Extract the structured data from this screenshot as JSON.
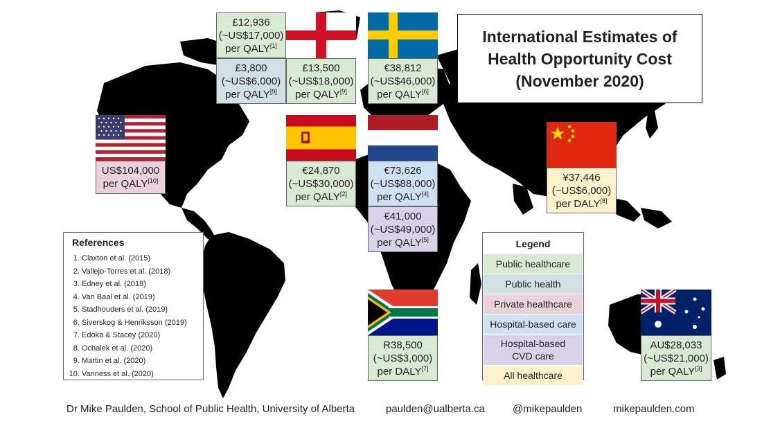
{
  "title": {
    "line1": "International Estimates of",
    "line2": "Health Opportunity Cost",
    "line3": "(November 2020)"
  },
  "countries": {
    "england": {
      "flag_icon": "england-flag-icon",
      "public_healthcare": {
        "l1": "£12,936",
        "l2": "(~US$17,000)",
        "l3": "per QALY",
        "ref": "[1]"
      },
      "public_health": {
        "l1": "£3,800",
        "l2": "(~US$6,000)",
        "l3": "per QALY",
        "ref": "[9]"
      },
      "public_healthcare_2": {
        "l1": "£13,500",
        "l2": "(~US$18,000)",
        "l3": "per QALY",
        "ref": "[9]"
      }
    },
    "sweden": {
      "flag_icon": "sweden-flag-icon",
      "l1": "€38,812",
      "l2": "(~US$46,000)",
      "l3": "per QALY",
      "ref": "[6]"
    },
    "usa": {
      "flag_icon": "usa-flag-icon",
      "l1": "US$104,000",
      "l2": "per QALY",
      "ref": "[10]"
    },
    "spain": {
      "flag_icon": "spain-flag-icon",
      "l1": "€24,870",
      "l2": "(~US$30,000)",
      "l3": "per QALY",
      "ref": "[2]"
    },
    "netherlands": {
      "flag_icon": "netherlands-flag-icon",
      "hospital": {
        "l1": "€73,626",
        "l2": "(~US$88,000)",
        "l3": "per QALY",
        "ref": "[4]"
      },
      "cvd": {
        "l1": "€41,000",
        "l2": "(~US$49,000)",
        "l3": "per QALY",
        "ref": "[5]"
      }
    },
    "china": {
      "flag_icon": "china-flag-icon",
      "l1": "¥37,446",
      "l2": "(~US$6,000)",
      "l3": "per DALY",
      "ref": "[8]"
    },
    "south_africa": {
      "flag_icon": "south-africa-flag-icon",
      "l1": "R38,500",
      "l2": "(~US$3,000)",
      "l3": "per DALY",
      "ref": "[7]"
    },
    "australia": {
      "flag_icon": "australia-flag-icon",
      "l1": "AU$28,033",
      "l2": "(~US$21,000)",
      "l3": "per QALY",
      "ref": "[3]"
    }
  },
  "references": {
    "heading": "References",
    "items": [
      "Claxton et al. (2015)",
      "Vallejo-Torres et al. (2018)",
      "Edney et al. (2018)",
      "Van Baal et al. (2019)",
      "Stadhouders et al. (2019)",
      "Siverskog & Henriksson (2019)",
      "Edoka & Stacey (2020)",
      "Ochalek et al. (2020)",
      "Martin et al. (2020)",
      "Vanness et al. (2020)"
    ]
  },
  "legend": {
    "heading": "Legend",
    "items": [
      {
        "label": "Public healthcare",
        "color": "#d9ead3"
      },
      {
        "label": "Public health",
        "color": "#d0e0e3"
      },
      {
        "label": "Private healthcare",
        "color": "#ead1dc"
      },
      {
        "label": "Hospital-based care",
        "color": "#cfe2f3"
      },
      {
        "label": "Hospital-based CVD care",
        "color": "#d9d2e9"
      },
      {
        "label": "All healthcare",
        "color": "#fff2cc"
      }
    ]
  },
  "footer": {
    "author": "Dr Mike Paulden, School of Public Health, University of Alberta",
    "email": "paulden@ualberta.ca",
    "twitter": "@mikepaulden",
    "website": "mikepaulden.com"
  }
}
